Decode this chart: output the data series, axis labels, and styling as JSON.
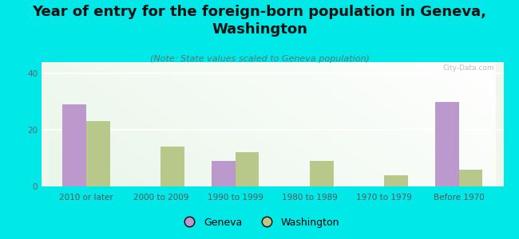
{
  "title": "Year of entry for the foreign-born population in Geneva,\nWashington",
  "subtitle": "(Note: State values scaled to Geneva population)",
  "categories": [
    "2010 or later",
    "2000 to 2009",
    "1990 to 1999",
    "1980 to 1989",
    "1970 to 1979",
    "Before 1970"
  ],
  "geneva_values": [
    29,
    0,
    9,
    0,
    0,
    30
  ],
  "washington_values": [
    23,
    14,
    12,
    9,
    4,
    6
  ],
  "geneva_color": "#bb99cc",
  "washington_color": "#b8c88a",
  "background_color": "#00e8e8",
  "ylim": [
    0,
    44
  ],
  "yticks": [
    0,
    20,
    40
  ],
  "bar_width": 0.32,
  "title_fontsize": 13,
  "subtitle_fontsize": 8,
  "tick_fontsize": 7.5,
  "legend_fontsize": 9,
  "watermark": "City-Data.com"
}
